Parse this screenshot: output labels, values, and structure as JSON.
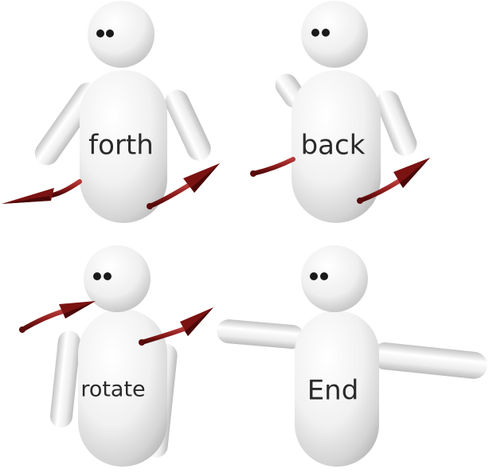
{
  "panels": [
    {
      "id": "forth",
      "label": "forth"
    },
    {
      "id": "back",
      "label": "back"
    },
    {
      "id": "rotate",
      "label": "rotate"
    },
    {
      "id": "end",
      "label": "End"
    }
  ],
  "colors": {
    "figure_fill": "#f4f4f4",
    "figure_shadow": "#c9c9c9",
    "arrow": "#8b1a1a",
    "arrow_dark": "#5a0b0b",
    "eye": "#1a1a1a",
    "text": "#2a2a2a"
  }
}
